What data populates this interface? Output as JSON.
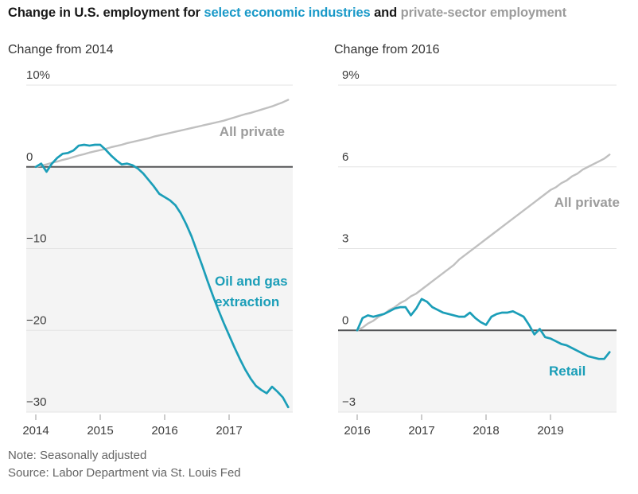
{
  "title": {
    "part1": "Change in U.S. employment for ",
    "highlight": "select economic industries",
    "part2": " and ",
    "part3": "private-sector employment"
  },
  "footnotes": {
    "note": "Note: Seasonally adjusted",
    "source": "Source: Labor Department via St. Louis Fed"
  },
  "colors": {
    "teal": "#1b9eb8",
    "title_teal": "#1999c8",
    "title_dark": "#191919",
    "title_gray": "#9c9c9c",
    "gray_line": "#c0c0c0",
    "gray_label": "#9c9c9c",
    "zero_line": "#545557",
    "gridline": "#e3e3e3",
    "negative_shade": "#f4f4f4",
    "axis_text": "#3d3d3d",
    "tick_mark": "#999999",
    "subtitle": "#333333",
    "footnote": "#646464"
  },
  "chart_data": [
    {
      "type": "line",
      "title": "Change from 2014",
      "x": {
        "interval": "monthly",
        "start": "2014-01",
        "end": "2017-12",
        "tick_labels": [
          "2014",
          "2015",
          "2016",
          "2017"
        ]
      },
      "y": {
        "unit": "percent change from 2014",
        "lim": [
          -30,
          10
        ],
        "ticks": [
          10,
          0,
          -10,
          -20,
          -30
        ],
        "tick_labels": [
          "10%",
          "0",
          "−10",
          "−20",
          "−30"
        ],
        "negative_region_shaded": true
      },
      "series": [
        {
          "name": "All private",
          "label_lines": [
            "All private"
          ],
          "color": "gray_line",
          "label_color": "gray_label",
          "values": [
            0,
            0.15,
            0.3,
            0.5,
            0.65,
            0.85,
            1.0,
            1.2,
            1.4,
            1.55,
            1.75,
            1.9,
            2.05,
            2.2,
            2.4,
            2.55,
            2.7,
            2.9,
            3.05,
            3.2,
            3.35,
            3.5,
            3.7,
            3.85,
            4.0,
            4.15,
            4.3,
            4.45,
            4.6,
            4.75,
            4.9,
            5.05,
            5.2,
            5.35,
            5.5,
            5.65,
            5.85,
            6.05,
            6.25,
            6.45,
            6.6,
            6.8,
            7.0,
            7.2,
            7.4,
            7.65,
            7.9,
            8.2
          ]
        },
        {
          "name": "Oil and gas extraction",
          "label_lines": [
            "Oil and gas",
            "extraction"
          ],
          "color": "teal",
          "label_color": "teal",
          "values": [
            0,
            0.4,
            -0.6,
            0.4,
            1.1,
            1.6,
            1.7,
            2.0,
            2.6,
            2.7,
            2.6,
            2.7,
            2.7,
            2.1,
            1.4,
            0.8,
            0.3,
            0.4,
            0.2,
            -0.2,
            -0.8,
            -1.6,
            -2.4,
            -3.3,
            -3.7,
            -4.1,
            -4.7,
            -5.7,
            -7.0,
            -8.5,
            -10.3,
            -12.1,
            -14.0,
            -15.8,
            -17.5,
            -19.1,
            -20.6,
            -22.1,
            -23.5,
            -24.8,
            -25.9,
            -26.8,
            -27.3,
            -27.7,
            -26.9,
            -27.5,
            -28.2,
            -29.4
          ]
        }
      ]
    },
    {
      "type": "line",
      "title": "Change from 2016",
      "x": {
        "interval": "monthly",
        "start": "2016-01",
        "end": "2019-12",
        "tick_labels": [
          "2016",
          "2017",
          "2018",
          "2019"
        ]
      },
      "y": {
        "unit": "percent change from 2016",
        "lim": [
          -3,
          9
        ],
        "ticks": [
          9,
          6,
          3,
          0,
          -3
        ],
        "tick_labels": [
          "9%",
          "6",
          "3",
          "0",
          "−3"
        ],
        "negative_region_shaded": true
      },
      "series": [
        {
          "name": "All private",
          "label_lines": [
            "All private"
          ],
          "color": "gray_line",
          "label_color": "gray_label",
          "values": [
            0,
            0.1,
            0.25,
            0.35,
            0.5,
            0.6,
            0.75,
            0.85,
            1.0,
            1.1,
            1.25,
            1.35,
            1.5,
            1.65,
            1.8,
            1.95,
            2.1,
            2.25,
            2.4,
            2.6,
            2.75,
            2.9,
            3.05,
            3.2,
            3.35,
            3.5,
            3.65,
            3.8,
            3.95,
            4.1,
            4.25,
            4.4,
            4.55,
            4.7,
            4.85,
            5.0,
            5.15,
            5.25,
            5.4,
            5.5,
            5.65,
            5.75,
            5.9,
            6.0,
            6.1,
            6.2,
            6.3,
            6.45
          ]
        },
        {
          "name": "Retail",
          "label_lines": [
            "Retail"
          ],
          "color": "teal",
          "label_color": "teal",
          "values": [
            0,
            0.45,
            0.55,
            0.5,
            0.55,
            0.6,
            0.7,
            0.8,
            0.85,
            0.85,
            0.55,
            0.8,
            1.15,
            1.05,
            0.85,
            0.75,
            0.65,
            0.6,
            0.55,
            0.5,
            0.5,
            0.65,
            0.45,
            0.3,
            0.2,
            0.5,
            0.6,
            0.65,
            0.65,
            0.7,
            0.6,
            0.5,
            0.2,
            -0.15,
            0.05,
            -0.25,
            -0.3,
            -0.4,
            -0.5,
            -0.55,
            -0.65,
            -0.75,
            -0.85,
            -0.95,
            -1.0,
            -1.05,
            -1.05,
            -0.8
          ]
        }
      ]
    }
  ]
}
